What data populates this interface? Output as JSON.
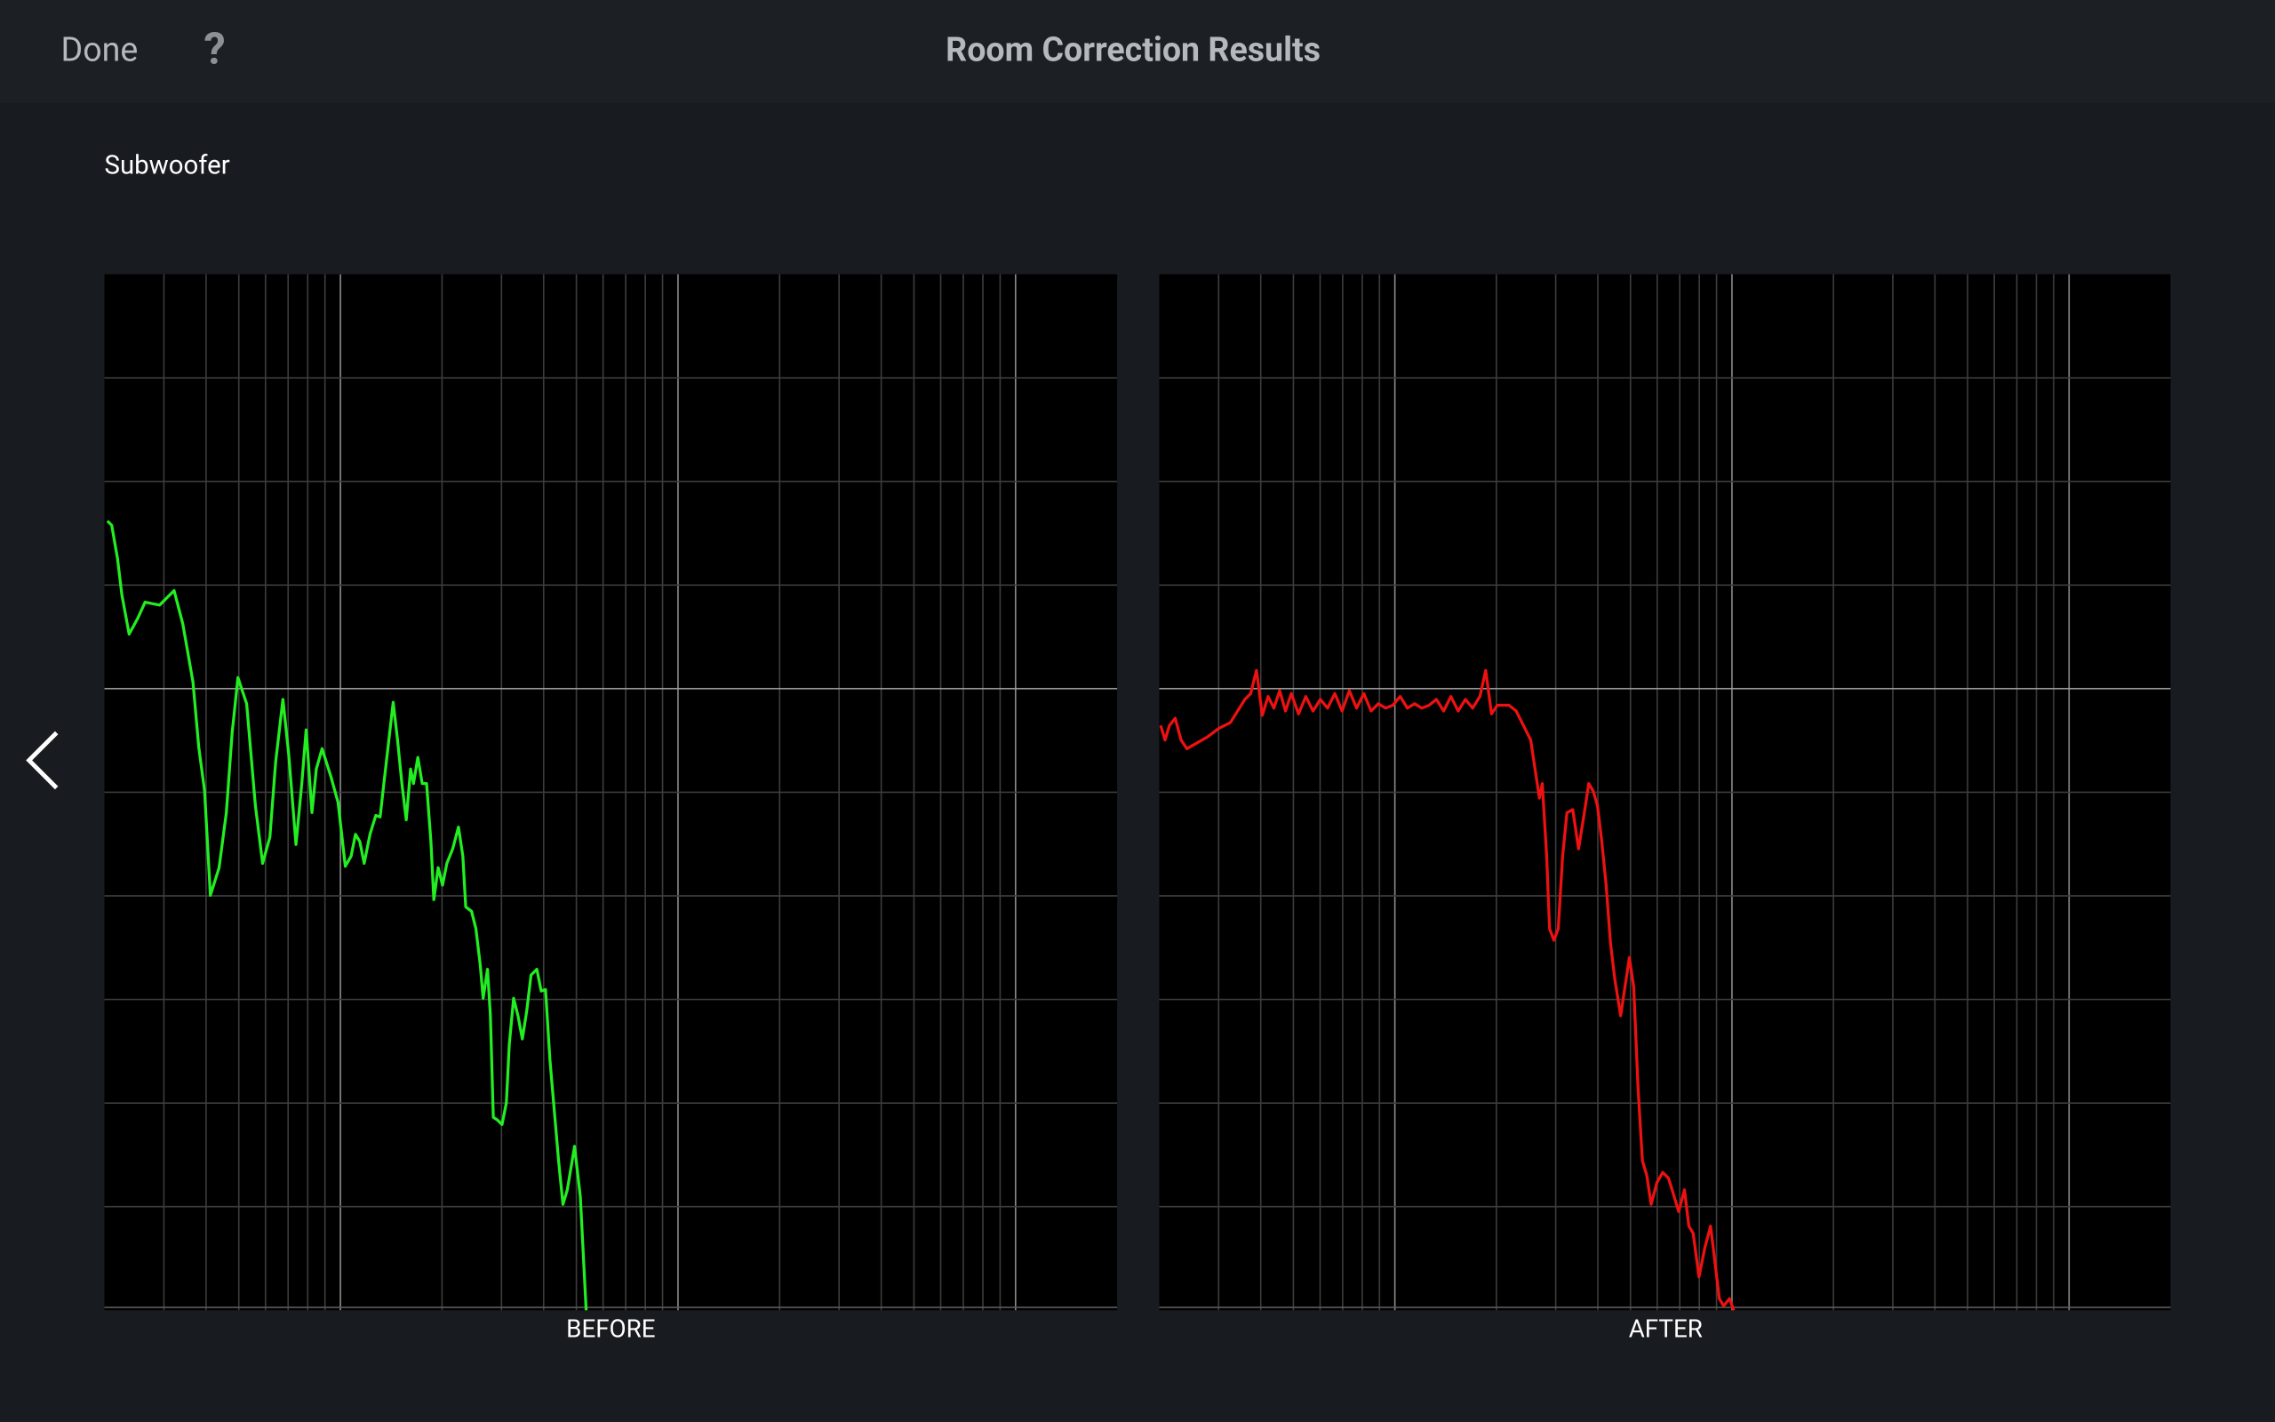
{
  "header": {
    "done": "Done",
    "help": "?",
    "title": "Room Correction Results"
  },
  "section": {
    "label": "Subwoofer"
  },
  "charts": [
    {
      "label": "BEFORE"
    },
    {
      "label": "AFTER"
    }
  ]
}
